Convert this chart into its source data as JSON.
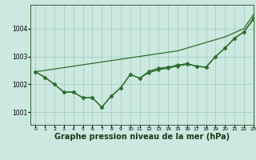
{
  "background_color": "#cce8e0",
  "grid_color": "#99ccbb",
  "line_color": "#2d6e2d",
  "xlabel": "Graphe pression niveau de la mer (hPa)",
  "xlabel_fontsize": 7,
  "ylim": [
    1000.55,
    1004.85
  ],
  "xlim": [
    -0.5,
    23
  ],
  "yticks": [
    1001,
    1002,
    1003,
    1004
  ],
  "xticks": [
    0,
    1,
    2,
    3,
    4,
    5,
    6,
    7,
    8,
    9,
    10,
    11,
    12,
    13,
    14,
    15,
    16,
    17,
    18,
    19,
    20,
    21,
    22,
    23
  ],
  "smooth_line": [
    1002.45,
    1002.5,
    1002.55,
    1002.6,
    1002.65,
    1002.7,
    1002.75,
    1002.8,
    1002.85,
    1002.9,
    1002.95,
    1003.0,
    1003.05,
    1003.1,
    1003.15,
    1003.2,
    1003.3,
    1003.4,
    1003.5,
    1003.6,
    1003.7,
    1003.85,
    1004.0,
    1004.5
  ],
  "series": [
    [
      1002.45,
      1002.25,
      1002.0,
      1001.72,
      1001.72,
      1001.52,
      1001.52,
      1001.18,
      1001.58,
      1001.88,
      1002.35,
      1002.22,
      1002.42,
      1002.52,
      1002.58,
      1002.65,
      1002.72,
      1002.65,
      1002.62,
      1003.0,
      1003.3,
      1003.65,
      1003.88,
      1004.38
    ],
    [
      1002.45,
      1002.25,
      1002.0,
      1001.72,
      1001.72,
      1001.52,
      1001.52,
      1001.18,
      1001.58,
      1001.88,
      1002.35,
      1002.22,
      1002.48,
      1002.58,
      1002.62,
      1002.68,
      1002.75,
      1002.65,
      1002.62,
      1003.0,
      1003.3,
      1003.65,
      1003.88,
      1004.32
    ],
    [
      1002.45,
      1002.25,
      1002.0,
      1001.72,
      1001.72,
      1001.52,
      1001.52,
      1001.18,
      1001.58,
      1001.88,
      1002.35,
      1002.22,
      1002.45,
      1002.55,
      1002.6,
      1002.7,
      1002.72,
      1002.65,
      1002.6,
      1003.0,
      1003.3,
      1003.65,
      1003.88,
      1004.35
    ]
  ]
}
